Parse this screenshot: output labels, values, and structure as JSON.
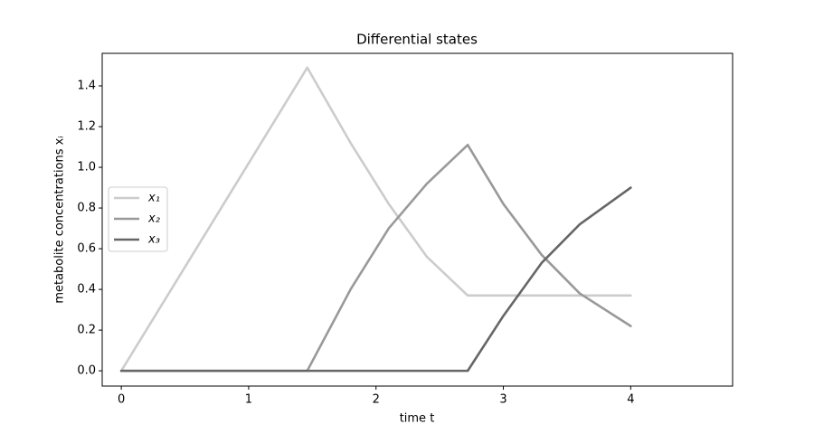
{
  "chart_data": {
    "type": "line",
    "title": "Differential states",
    "x_label": "time t",
    "y_label": "metabolite concentrations xᵢ",
    "x": [
      0,
      0.5,
      1.0,
      1.46,
      1.8,
      2.1,
      2.4,
      2.72,
      3.0,
      3.3,
      3.6,
      4.0
    ],
    "series": [
      {
        "name": "x₁",
        "color": "#cccccc",
        "values": [
          0,
          0.51,
          1.02,
          1.49,
          1.12,
          0.82,
          0.56,
          0.37,
          0.37,
          0.37,
          0.37,
          0.37
        ]
      },
      {
        "name": "x₂",
        "color": "#999999",
        "values": [
          0,
          0,
          0,
          0,
          0.4,
          0.7,
          0.92,
          1.11,
          0.82,
          0.57,
          0.38,
          0.22
        ]
      },
      {
        "name": "x₃",
        "color": "#666666",
        "values": [
          0,
          0,
          0,
          0,
          0,
          0,
          0,
          0,
          0.27,
          0.53,
          0.72,
          0.9
        ]
      }
    ],
    "xlim": [
      -0.15,
      4.8
    ],
    "xticks": [
      0,
      1,
      2,
      3,
      4
    ],
    "ylim": [
      -0.075,
      1.56
    ],
    "yticks": [
      {
        "value": 0,
        "label": "0.0"
      },
      0.2,
      0.4,
      0.6,
      0.8,
      {
        "value": 1,
        "label": "1.0"
      },
      1.2,
      1.4
    ],
    "grid": false,
    "legend": "left"
  }
}
